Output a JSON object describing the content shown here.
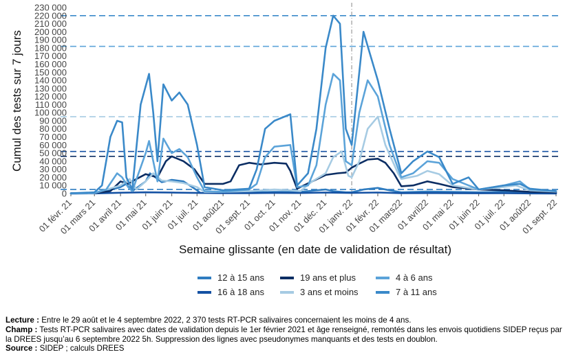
{
  "chart_data": {
    "type": "line",
    "ylabel": "Cumul des tests sur 7 jours",
    "xlabel": "Semaine glissante (en date de validation de résultat)",
    "ylim": [
      0,
      230000
    ],
    "y_ticks": [
      0,
      10000,
      20000,
      30000,
      40000,
      50000,
      60000,
      70000,
      80000,
      90000,
      100000,
      110000,
      120000,
      130000,
      140000,
      150000,
      160000,
      170000,
      180000,
      190000,
      200000,
      210000,
      220000,
      230000
    ],
    "y_tick_labels": [
      "0",
      "10 000",
      "20 000",
      "30 000",
      "40 000",
      "50 000",
      "60 000",
      "70 000",
      "80 000",
      "90 000",
      "100 000",
      "110 000",
      "120 000",
      "130 000",
      "140 000",
      "150 000",
      "160 000",
      "170 000",
      "180 000",
      "190 000",
      "200 000",
      "210 000",
      "220 000",
      "230 000"
    ],
    "x_ticks": [
      "2021-02-01",
      "2021-03-01",
      "2021-04-01",
      "2021-05-01",
      "2021-06-01",
      "2021-07-01",
      "2021-08-01",
      "2021-09-01",
      "2021-10-01",
      "2021-11-01",
      "2021-12-01",
      "2022-01-01",
      "2022-02-01",
      "2022-03-01",
      "2022-04-01",
      "2022-05-01",
      "2022-06-01",
      "2022-07-01",
      "2022-08-01",
      "2022-09-01"
    ],
    "x_tick_labels": [
      "01 févr. 21",
      "01 mars 21",
      "01 avril 21",
      "01 mai 21",
      "01 juin 21",
      "01 juil. 21",
      "01 août21",
      "01 sept. 21",
      "01 oct. 21",
      "01 nov. 21",
      "01 déc. 21",
      "01 janv. 22",
      "01 févr. 22",
      "01 mars22",
      "01 avril22",
      "01 mai 22",
      "01 juin 22",
      "01 juil. 22",
      "01 août22",
      "01 sept. 22"
    ],
    "vertical_line": "2022-01-01",
    "grid": false,
    "legend_position": "bottom",
    "series": [
      {
        "name": "12 à 15 ans",
        "color": "#2f7cc0",
        "points": [
          [
            "2021-02-01",
            100
          ],
          [
            "2021-03-01",
            300
          ],
          [
            "2021-03-15",
            3000
          ],
          [
            "2021-04-01",
            8000
          ],
          [
            "2021-04-08",
            12000
          ],
          [
            "2021-04-15",
            3000
          ],
          [
            "2021-05-01",
            15000
          ],
          [
            "2021-05-06",
            25000
          ],
          [
            "2021-05-20",
            14000
          ],
          [
            "2021-06-01",
            17000
          ],
          [
            "2021-06-15",
            15000
          ],
          [
            "2021-07-01",
            4000
          ],
          [
            "2021-07-05",
            800
          ],
          [
            "2021-08-01",
            700
          ],
          [
            "2021-09-01",
            1500
          ],
          [
            "2021-10-01",
            2000
          ],
          [
            "2021-11-01",
            2000
          ],
          [
            "2021-11-15",
            3500
          ],
          [
            "2021-12-01",
            5000
          ],
          [
            "2021-12-10",
            3000
          ],
          [
            "2021-12-25",
            1500
          ],
          [
            "2022-01-01",
            1500
          ],
          [
            "2022-01-15",
            5000
          ],
          [
            "2022-02-01",
            7000
          ],
          [
            "2022-02-15",
            4000
          ],
          [
            "2022-03-01",
            1500
          ],
          [
            "2022-04-01",
            2500
          ],
          [
            "2022-05-01",
            2000
          ],
          [
            "2022-06-01",
            1500
          ],
          [
            "2022-07-01",
            2000
          ],
          [
            "2022-08-01",
            800
          ],
          [
            "2022-09-01",
            400
          ]
        ]
      },
      {
        "name": "16 à 18 ans",
        "color": "#1451a3",
        "points": [
          [
            "2021-02-01",
            100
          ],
          [
            "2021-03-01",
            200
          ],
          [
            "2021-04-01",
            1000
          ],
          [
            "2021-05-01",
            1500
          ],
          [
            "2021-06-01",
            1200
          ],
          [
            "2021-07-01",
            800
          ],
          [
            "2021-08-01",
            400
          ],
          [
            "2021-09-01",
            500
          ],
          [
            "2021-10-01",
            800
          ],
          [
            "2021-11-01",
            700
          ],
          [
            "2021-12-01",
            1200
          ],
          [
            "2022-01-01",
            800
          ],
          [
            "2022-02-01",
            1300
          ],
          [
            "2022-03-01",
            500
          ],
          [
            "2022-04-01",
            600
          ],
          [
            "2022-05-01",
            500
          ],
          [
            "2022-06-01",
            300
          ],
          [
            "2022-07-01",
            400
          ],
          [
            "2022-08-01",
            200
          ],
          [
            "2022-09-01",
            100
          ]
        ]
      },
      {
        "name": "19 ans et plus",
        "color": "#0b2d63",
        "points": [
          [
            "2021-02-01",
            300
          ],
          [
            "2021-03-01",
            700
          ],
          [
            "2021-03-20",
            3000
          ],
          [
            "2021-04-01",
            15000
          ],
          [
            "2021-04-10",
            12000
          ],
          [
            "2021-04-20",
            18000
          ],
          [
            "2021-05-01",
            24000
          ],
          [
            "2021-05-08",
            22000
          ],
          [
            "2021-05-15",
            20000
          ],
          [
            "2021-05-25",
            40000
          ],
          [
            "2021-06-01",
            46000
          ],
          [
            "2021-06-15",
            40000
          ],
          [
            "2021-06-28",
            30000
          ],
          [
            "2021-07-10",
            12000
          ],
          [
            "2021-08-01",
            12000
          ],
          [
            "2021-08-10",
            15000
          ],
          [
            "2021-08-20",
            35000
          ],
          [
            "2021-09-01",
            38000
          ],
          [
            "2021-09-15",
            36000
          ],
          [
            "2021-10-01",
            38000
          ],
          [
            "2021-10-15",
            37000
          ],
          [
            "2021-10-20",
            28000
          ],
          [
            "2021-10-28",
            6000
          ],
          [
            "2021-11-05",
            10000
          ],
          [
            "2021-11-15",
            15000
          ],
          [
            "2021-12-01",
            23000
          ],
          [
            "2021-12-15",
            25000
          ],
          [
            "2021-12-25",
            26000
          ],
          [
            "2022-01-01",
            32000
          ],
          [
            "2022-01-10",
            37000
          ],
          [
            "2022-01-20",
            42000
          ],
          [
            "2022-02-01",
            43000
          ],
          [
            "2022-02-10",
            38000
          ],
          [
            "2022-02-20",
            25000
          ],
          [
            "2022-03-01",
            9000
          ],
          [
            "2022-03-15",
            10000
          ],
          [
            "2022-04-01",
            15000
          ],
          [
            "2022-04-15",
            12000
          ],
          [
            "2022-05-01",
            8000
          ],
          [
            "2022-06-01",
            5000
          ],
          [
            "2022-07-01",
            4000
          ],
          [
            "2022-08-01",
            2000
          ],
          [
            "2022-09-01",
            1500
          ]
        ]
      },
      {
        "name": "3 ans et moins",
        "color": "#a6cbe3",
        "points": [
          [
            "2021-02-01",
            200
          ],
          [
            "2021-03-01",
            500
          ],
          [
            "2021-04-01",
            10000
          ],
          [
            "2021-04-12",
            18000
          ],
          [
            "2021-04-20",
            5000
          ],
          [
            "2021-05-01",
            15000
          ],
          [
            "2021-05-10",
            25000
          ],
          [
            "2021-05-20",
            16000
          ],
          [
            "2021-06-01",
            15000
          ],
          [
            "2021-06-15",
            13000
          ],
          [
            "2021-07-01",
            8000
          ],
          [
            "2021-07-10",
            2000
          ],
          [
            "2021-08-01",
            2000
          ],
          [
            "2021-09-01",
            3000
          ],
          [
            "2021-10-01",
            5000
          ],
          [
            "2021-10-20",
            4000
          ],
          [
            "2021-11-01",
            3000
          ],
          [
            "2021-11-15",
            15000
          ],
          [
            "2021-12-01",
            25000
          ],
          [
            "2021-12-10",
            45000
          ],
          [
            "2021-12-20",
            52000
          ],
          [
            "2021-12-28",
            22000
          ],
          [
            "2022-01-01",
            20000
          ],
          [
            "2022-01-10",
            40000
          ],
          [
            "2022-01-20",
            80000
          ],
          [
            "2022-02-01",
            95000
          ],
          [
            "2022-02-10",
            60000
          ],
          [
            "2022-02-25",
            25000
          ],
          [
            "2022-03-01",
            18000
          ],
          [
            "2022-03-20",
            22000
          ],
          [
            "2022-04-01",
            28000
          ],
          [
            "2022-04-15",
            24000
          ],
          [
            "2022-05-01",
            10000
          ],
          [
            "2022-06-01",
            5000
          ],
          [
            "2022-07-01",
            8000
          ],
          [
            "2022-07-15",
            10000
          ],
          [
            "2022-08-01",
            4000
          ],
          [
            "2022-09-01",
            2370
          ]
        ]
      },
      {
        "name": "4 à 6 ans",
        "color": "#5ba3d9",
        "points": [
          [
            "2021-02-01",
            200
          ],
          [
            "2021-03-01",
            800
          ],
          [
            "2021-03-15",
            5000
          ],
          [
            "2021-03-28",
            25000
          ],
          [
            "2021-04-03",
            20000
          ],
          [
            "2021-04-10",
            8000
          ],
          [
            "2021-04-15",
            3000
          ],
          [
            "2021-05-01",
            50000
          ],
          [
            "2021-05-05",
            65000
          ],
          [
            "2021-05-10",
            40000
          ],
          [
            "2021-05-15",
            15000
          ],
          [
            "2021-05-22",
            68000
          ],
          [
            "2021-06-01",
            50000
          ],
          [
            "2021-06-10",
            55000
          ],
          [
            "2021-06-20",
            45000
          ],
          [
            "2021-07-01",
            20000
          ],
          [
            "2021-07-10",
            3000
          ],
          [
            "2021-08-01",
            2000
          ],
          [
            "2021-09-01",
            5000
          ],
          [
            "2021-09-10",
            12000
          ],
          [
            "2021-09-20",
            45000
          ],
          [
            "2021-10-01",
            58000
          ],
          [
            "2021-10-20",
            60000
          ],
          [
            "2021-10-28",
            8000
          ],
          [
            "2021-11-10",
            10000
          ],
          [
            "2021-11-20",
            35000
          ],
          [
            "2021-12-01",
            110000
          ],
          [
            "2021-12-10",
            148000
          ],
          [
            "2021-12-18",
            140000
          ],
          [
            "2021-12-25",
            40000
          ],
          [
            "2022-01-01",
            35000
          ],
          [
            "2022-01-10",
            100000
          ],
          [
            "2022-01-20",
            140000
          ],
          [
            "2022-02-01",
            120000
          ],
          [
            "2022-02-15",
            60000
          ],
          [
            "2022-03-01",
            20000
          ],
          [
            "2022-03-15",
            25000
          ],
          [
            "2022-04-01",
            40000
          ],
          [
            "2022-04-15",
            38000
          ],
          [
            "2022-05-01",
            18000
          ],
          [
            "2022-06-01",
            5000
          ],
          [
            "2022-07-01",
            10000
          ],
          [
            "2022-07-20",
            15000
          ],
          [
            "2022-08-01",
            5000
          ],
          [
            "2022-09-01",
            3000
          ]
        ]
      },
      {
        "name": "7 à 11 ans",
        "color": "#3a89c9",
        "points": [
          [
            "2021-02-01",
            300
          ],
          [
            "2021-03-01",
            1500
          ],
          [
            "2021-03-10",
            10000
          ],
          [
            "2021-03-20",
            70000
          ],
          [
            "2021-03-28",
            90000
          ],
          [
            "2021-04-03",
            88000
          ],
          [
            "2021-04-08",
            20000
          ],
          [
            "2021-04-15",
            5000
          ],
          [
            "2021-04-25",
            110000
          ],
          [
            "2021-05-05",
            148000
          ],
          [
            "2021-05-10",
            100000
          ],
          [
            "2021-05-15",
            40000
          ],
          [
            "2021-05-22",
            135000
          ],
          [
            "2021-06-01",
            115000
          ],
          [
            "2021-06-10",
            125000
          ],
          [
            "2021-06-20",
            110000
          ],
          [
            "2021-07-01",
            60000
          ],
          [
            "2021-07-10",
            8000
          ],
          [
            "2021-08-01",
            4000
          ],
          [
            "2021-09-01",
            6000
          ],
          [
            "2021-09-10",
            30000
          ],
          [
            "2021-09-20",
            80000
          ],
          [
            "2021-10-01",
            90000
          ],
          [
            "2021-10-20",
            98000
          ],
          [
            "2021-10-28",
            10000
          ],
          [
            "2021-11-10",
            25000
          ],
          [
            "2021-11-20",
            80000
          ],
          [
            "2021-12-01",
            180000
          ],
          [
            "2021-12-10",
            220000
          ],
          [
            "2021-12-18",
            210000
          ],
          [
            "2021-12-25",
            80000
          ],
          [
            "2022-01-01",
            60000
          ],
          [
            "2022-01-10",
            150000
          ],
          [
            "2022-01-15",
            200000
          ],
          [
            "2022-01-22",
            175000
          ],
          [
            "2022-02-01",
            140000
          ],
          [
            "2022-02-15",
            80000
          ],
          [
            "2022-03-01",
            25000
          ],
          [
            "2022-03-15",
            40000
          ],
          [
            "2022-04-01",
            52000
          ],
          [
            "2022-04-15",
            45000
          ],
          [
            "2022-05-01",
            12000
          ],
          [
            "2022-05-20",
            20000
          ],
          [
            "2022-06-01",
            5000
          ],
          [
            "2022-07-01",
            10000
          ],
          [
            "2022-07-20",
            12000
          ],
          [
            "2022-08-01",
            6000
          ],
          [
            "2022-09-01",
            3000
          ]
        ]
      }
    ],
    "reference_lines": [
      {
        "y": 220000,
        "color": "#3a89c9"
      },
      {
        "y": 182000,
        "color": "#5ba3d9"
      },
      {
        "y": 95000,
        "color": "#a6cbe3"
      },
      {
        "y": 52000,
        "color": "#1451a3"
      },
      {
        "y": 46000,
        "color": "#0b2d63"
      },
      {
        "y": 5000,
        "color": "#2f7cc0"
      }
    ]
  },
  "legend": [
    {
      "label": "12 à 15 ans",
      "color": "#2f7cc0"
    },
    {
      "label": "19 ans et plus",
      "color": "#0b2d63"
    },
    {
      "label": "4 à 6 ans",
      "color": "#5ba3d9"
    },
    {
      "label": "16 à 18 ans",
      "color": "#1451a3"
    },
    {
      "label": "3 ans et moins",
      "color": "#a6cbe3"
    },
    {
      "label": "7 à 11 ans",
      "color": "#3a89c9"
    }
  ],
  "footer": {
    "lecture_label": "Lecture :",
    "lecture_text": "Entre le 29 août et le 4 septembre 2022, 2 370 tests RT-PCR salivaires concernaient les moins de 4 ans.",
    "champ_label": "Champ :",
    "champ_text": "Tests RT-PCR salivaires avec dates de validation depuis le 1er février 2021 et âge renseigné, remontés dans les envois quotidiens SIDEP reçus par la DREES jusqu’au 6 septembre 2022 5h. Suppression des lignes avec pseudonymes manquants et des tests en doublon.",
    "source_label": "Source :",
    "source_text": "SIDEP ; calculs DREES"
  }
}
